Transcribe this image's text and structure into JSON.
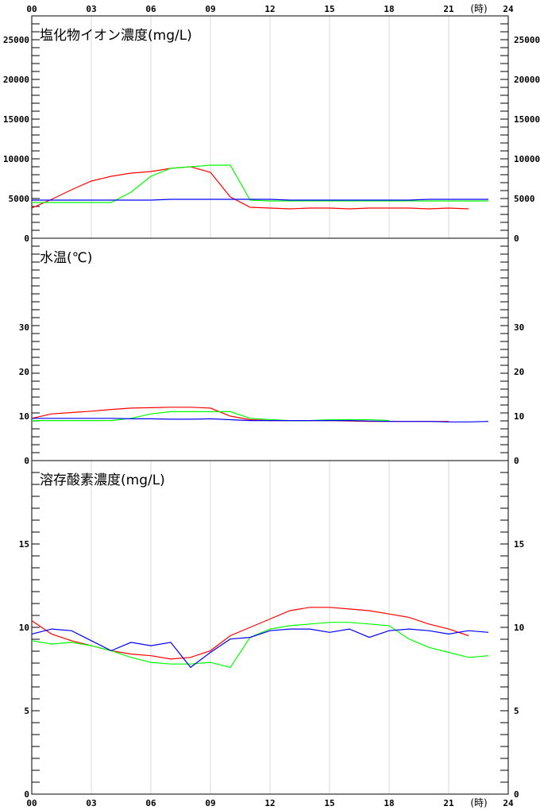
{
  "chart_data": [
    {
      "type": "line",
      "title": "塩化物イオン濃度(mg/L)",
      "x_unit": "(時)",
      "x_ticks": [
        "00",
        "03",
        "06",
        "09",
        "12",
        "15",
        "18",
        "21",
        "24"
      ],
      "xlim": [
        0,
        24
      ],
      "ylim": [
        0,
        28000
      ],
      "y_ticks": [
        0,
        5000,
        10000,
        15000,
        20000,
        25000
      ],
      "grid": "vertical",
      "series": [
        {
          "color": "#ff0000",
          "x": [
            0,
            1,
            2,
            3,
            4,
            5,
            6,
            7,
            8,
            9,
            10,
            11,
            12,
            13,
            14,
            15,
            16,
            17,
            18,
            19,
            20,
            21,
            22
          ],
          "y": [
            3800,
            4900,
            6100,
            7200,
            7800,
            8200,
            8400,
            8800,
            9000,
            8300,
            5200,
            3900,
            3800,
            3700,
            3800,
            3800,
            3700,
            3800,
            3800,
            3800,
            3700,
            3800,
            3700
          ]
        },
        {
          "color": "#00ff00",
          "x": [
            0,
            1,
            2,
            3,
            4,
            5,
            6,
            7,
            8,
            9,
            10,
            11,
            12,
            13,
            14,
            15,
            16,
            17,
            18,
            19,
            20,
            21,
            22,
            23
          ],
          "y": [
            4500,
            4500,
            4500,
            4500,
            4500,
            5800,
            7800,
            8800,
            9000,
            9200,
            9200,
            4800,
            4700,
            4700,
            4700,
            4700,
            4700,
            4700,
            4700,
            4700,
            4700,
            4700,
            4700,
            4700
          ]
        },
        {
          "color": "#0000ff",
          "x": [
            0,
            1,
            2,
            3,
            4,
            5,
            6,
            7,
            8,
            9,
            10,
            11,
            12,
            13,
            14,
            15,
            16,
            17,
            18,
            19,
            20,
            21,
            22,
            23
          ],
          "y": [
            4800,
            4800,
            4800,
            4800,
            4800,
            4800,
            4800,
            4900,
            4900,
            4900,
            4900,
            4900,
            4900,
            4800,
            4800,
            4800,
            4800,
            4800,
            4800,
            4800,
            4900,
            4900,
            4900,
            4900
          ]
        }
      ]
    },
    {
      "type": "line",
      "title": "水温(℃)",
      "xlim": [
        0,
        24
      ],
      "ylim": [
        0,
        50
      ],
      "y_ticks": [
        0,
        10,
        20,
        30
      ],
      "grid": "none",
      "series": [
        {
          "color": "#ff0000",
          "x": [
            0,
            1,
            2,
            3,
            4,
            5,
            6,
            7,
            8,
            9,
            10,
            11,
            12,
            13,
            14,
            15,
            16,
            17,
            18,
            19,
            20,
            21
          ],
          "y": [
            9.5,
            10.5,
            10.8,
            11.1,
            11.5,
            11.8,
            11.9,
            12.0,
            12.0,
            11.8,
            10.0,
            9.2,
            9.0,
            9.0,
            9.0,
            9.0,
            8.9,
            8.8,
            8.8,
            8.8,
            8.8,
            8.8
          ]
        },
        {
          "color": "#00ff00",
          "x": [
            0,
            1,
            2,
            3,
            4,
            5,
            6,
            7,
            8,
            9,
            10,
            11,
            12,
            13,
            14,
            15,
            16,
            17,
            18
          ],
          "y": [
            9.0,
            9.0,
            9.0,
            9.0,
            9.0,
            9.5,
            10.5,
            11.0,
            11.0,
            11.0,
            11.0,
            9.5,
            9.2,
            9.0,
            9.0,
            9.2,
            9.2,
            9.2,
            9.0
          ]
        },
        {
          "color": "#0000ff",
          "x": [
            0,
            1,
            2,
            3,
            4,
            5,
            6,
            7,
            8,
            9,
            10,
            11,
            12,
            13,
            14,
            15,
            16,
            17,
            18,
            19,
            20,
            21,
            22,
            23
          ],
          "y": [
            9.5,
            9.5,
            9.5,
            9.5,
            9.5,
            9.4,
            9.4,
            9.3,
            9.3,
            9.4,
            9.2,
            9.0,
            9.0,
            9.0,
            9.0,
            9.0,
            9.0,
            8.9,
            8.8,
            8.8,
            8.8,
            8.7,
            8.7,
            8.8
          ]
        }
      ]
    },
    {
      "type": "line",
      "title": "溶存酸素濃度(mg/L)",
      "x_unit": "(時)",
      "x_ticks": [
        "00",
        "03",
        "06",
        "09",
        "12",
        "15",
        "18",
        "21",
        "24"
      ],
      "xlim": [
        0,
        24
      ],
      "ylim": [
        0,
        20
      ],
      "y_ticks": [
        0,
        5,
        10,
        15
      ],
      "grid": "vertical",
      "series": [
        {
          "color": "#ff0000",
          "x": [
            0,
            1,
            2,
            3,
            4,
            5,
            6,
            7,
            8,
            9,
            10,
            11,
            12,
            13,
            14,
            15,
            16,
            17,
            18,
            19,
            20,
            21,
            22
          ],
          "y": [
            10.4,
            9.6,
            9.2,
            8.9,
            8.6,
            8.4,
            8.3,
            8.1,
            8.2,
            8.6,
            9.5,
            10.0,
            10.5,
            11.0,
            11.2,
            11.2,
            11.1,
            11.0,
            10.8,
            10.6,
            10.2,
            9.9,
            9.5
          ]
        },
        {
          "color": "#00ff00",
          "x": [
            0,
            1,
            2,
            3,
            4,
            5,
            6,
            7,
            8,
            9,
            10,
            11,
            12,
            13,
            14,
            15,
            16,
            17,
            18,
            19,
            20,
            21,
            22,
            23
          ],
          "y": [
            9.2,
            9.0,
            9.1,
            8.9,
            8.6,
            8.2,
            7.9,
            7.8,
            7.8,
            7.9,
            7.6,
            9.4,
            9.9,
            10.1,
            10.2,
            10.3,
            10.3,
            10.2,
            10.1,
            9.3,
            8.8,
            8.5,
            8.2,
            8.3
          ]
        },
        {
          "color": "#0000ff",
          "x": [
            0,
            1,
            2,
            3,
            4,
            5,
            6,
            7,
            8,
            9,
            10,
            11,
            12,
            13,
            14,
            15,
            16,
            17,
            18,
            19,
            20,
            21,
            22,
            23
          ],
          "y": [
            9.6,
            9.9,
            9.8,
            9.2,
            8.6,
            9.1,
            8.9,
            9.1,
            7.6,
            8.5,
            9.3,
            9.4,
            9.8,
            9.9,
            9.9,
            9.7,
            9.9,
            9.4,
            9.8,
            9.9,
            9.8,
            9.6,
            9.8,
            9.7
          ]
        }
      ]
    }
  ]
}
